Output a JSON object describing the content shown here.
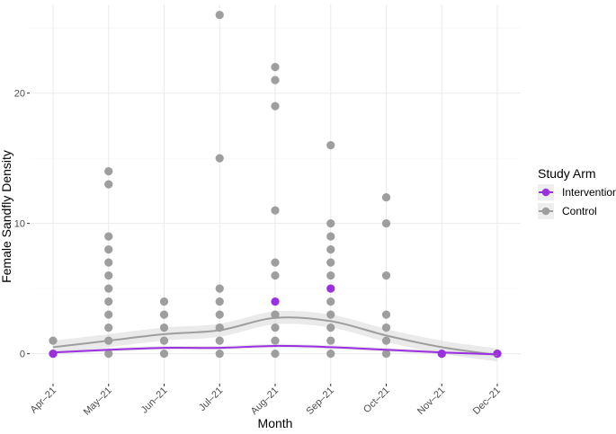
{
  "chart_data": {
    "type": "scatter",
    "title": "",
    "xlabel": "Month",
    "ylabel": "Female Sandfly Density",
    "categories": [
      "Apr–21",
      "May–21",
      "Jun–21",
      "Jul–21",
      "Aug–21",
      "Sep–21",
      "Oct–21",
      "Nov–21",
      "Dec–21"
    ],
    "yticks": [
      0,
      10,
      20
    ],
    "ylim": [
      -2.3,
      26.8
    ],
    "grid": true,
    "legend": {
      "title": "Study Arm",
      "position": "right"
    },
    "series": [
      {
        "name": "Intervention",
        "color": "#9b30e0",
        "points": [
          {
            "x": "Apr–21",
            "y": 0
          },
          {
            "x": "Aug–21",
            "y": 4
          },
          {
            "x": "Sep–21",
            "y": 5
          },
          {
            "x": "Nov–21",
            "y": 0
          },
          {
            "x": "Dec–21",
            "y": 0
          }
        ],
        "smooth": [
          0.1,
          0.3,
          0.45,
          0.45,
          0.6,
          0.5,
          0.3,
          0.1,
          -0.05
        ],
        "smooth_band": 0.15
      },
      {
        "name": "Control",
        "color": "#9e9e9e",
        "points": [
          {
            "x": "Apr–21",
            "y": 1
          },
          {
            "x": "Apr–21",
            "y": 0
          },
          {
            "x": "May–21",
            "y": 14
          },
          {
            "x": "May–21",
            "y": 13
          },
          {
            "x": "May–21",
            "y": 9
          },
          {
            "x": "May–21",
            "y": 8
          },
          {
            "x": "May–21",
            "y": 7
          },
          {
            "x": "May–21",
            "y": 6
          },
          {
            "x": "May–21",
            "y": 5
          },
          {
            "x": "May–21",
            "y": 4
          },
          {
            "x": "May–21",
            "y": 3
          },
          {
            "x": "May–21",
            "y": 2
          },
          {
            "x": "May–21",
            "y": 1
          },
          {
            "x": "May–21",
            "y": 0
          },
          {
            "x": "Jun–21",
            "y": 4
          },
          {
            "x": "Jun–21",
            "y": 3
          },
          {
            "x": "Jun–21",
            "y": 2
          },
          {
            "x": "Jun–21",
            "y": 1
          },
          {
            "x": "Jun–21",
            "y": 0
          },
          {
            "x": "Jul–21",
            "y": 26
          },
          {
            "x": "Jul–21",
            "y": 15
          },
          {
            "x": "Jul–21",
            "y": 5
          },
          {
            "x": "Jul–21",
            "y": 4
          },
          {
            "x": "Jul–21",
            "y": 3
          },
          {
            "x": "Jul–21",
            "y": 2
          },
          {
            "x": "Jul–21",
            "y": 1
          },
          {
            "x": "Jul–21",
            "y": 0
          },
          {
            "x": "Aug–21",
            "y": 22
          },
          {
            "x": "Aug–21",
            "y": 21
          },
          {
            "x": "Aug–21",
            "y": 19
          },
          {
            "x": "Aug–21",
            "y": 11
          },
          {
            "x": "Aug–21",
            "y": 7
          },
          {
            "x": "Aug–21",
            "y": 6
          },
          {
            "x": "Aug–21",
            "y": 3
          },
          {
            "x": "Aug–21",
            "y": 2
          },
          {
            "x": "Aug–21",
            "y": 1
          },
          {
            "x": "Aug–21",
            "y": 0
          },
          {
            "x": "Sep–21",
            "y": 16
          },
          {
            "x": "Sep–21",
            "y": 10
          },
          {
            "x": "Sep–21",
            "y": 9
          },
          {
            "x": "Sep–21",
            "y": 8
          },
          {
            "x": "Sep–21",
            "y": 7
          },
          {
            "x": "Sep–21",
            "y": 6
          },
          {
            "x": "Sep–21",
            "y": 4
          },
          {
            "x": "Sep–21",
            "y": 3
          },
          {
            "x": "Sep–21",
            "y": 2
          },
          {
            "x": "Sep–21",
            "y": 1
          },
          {
            "x": "Sep–21",
            "y": 0
          },
          {
            "x": "Oct–21",
            "y": 12
          },
          {
            "x": "Oct–21",
            "y": 10
          },
          {
            "x": "Oct–21",
            "y": 6
          },
          {
            "x": "Oct–21",
            "y": 3
          },
          {
            "x": "Oct–21",
            "y": 2
          },
          {
            "x": "Oct–21",
            "y": 1
          },
          {
            "x": "Oct–21",
            "y": 0
          },
          {
            "x": "Nov–21",
            "y": 0
          },
          {
            "x": "Dec–21",
            "y": 0
          }
        ],
        "smooth": [
          0.5,
          1.0,
          1.5,
          1.8,
          2.75,
          2.5,
          1.4,
          0.5,
          -0.1
        ],
        "smooth_band": 0.5
      }
    ]
  },
  "colors": {
    "panel_background": "#ffffff",
    "grid_major": "#ebebeb",
    "grid_minor": "#f5f5f5",
    "band": "#d9d9d9"
  }
}
